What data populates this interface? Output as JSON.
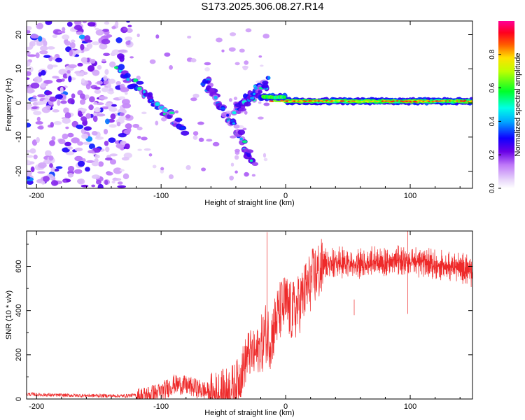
{
  "page": {
    "title": "S173.2025.306.08.27.R14"
  },
  "chart_data": [
    {
      "type": "heatmap",
      "title": "S173.2025.306.08.27.R14",
      "xlabel": "Height of straight line (km)",
      "ylabel": "Frequency (Hz)",
      "xlim": [
        -208,
        150
      ],
      "ylim": [
        -25,
        24
      ],
      "xticks": [
        -200,
        -100,
        0,
        100
      ],
      "xtick_labels": [
        "-200",
        "-100",
        "0",
        "100"
      ],
      "yticks": [
        -20,
        -10,
        0,
        10,
        20
      ],
      "ytick_labels": [
        "-20",
        "-10",
        "0",
        "10",
        "20"
      ],
      "colorbar": {
        "label": "Normalized spectral amplitude",
        "range": [
          0,
          1
        ],
        "ticks": [
          0.0,
          0.2,
          0.4,
          0.6,
          0.8
        ],
        "tick_labels": [
          "0.0",
          "0.2",
          "0.4",
          "0.6",
          "0.8"
        ]
      },
      "features": {
        "noise_region_x": [
          -208,
          -135
        ],
        "noise_amplitude": [
          0.05,
          0.35
        ],
        "tilted_lines": [
          {
            "x": [
              -135,
              -80
            ],
            "freq": [
              10,
              -8
            ]
          },
          {
            "x": [
              -65,
              -25
            ],
            "freq": [
              7,
              -17
            ]
          },
          {
            "x": [
              -40,
              -15
            ],
            "freq": [
              -2,
              6
            ]
          }
        ],
        "carrier_line": {
          "x": [
            -15,
            150
          ],
          "freq": 0.5,
          "amplitude": 0.9
        }
      }
    },
    {
      "type": "line",
      "xlabel": "Height of straight line (km)",
      "ylabel": "SNR (10 * v/v)",
      "xlim": [
        -208,
        150
      ],
      "ylim": [
        0,
        760
      ],
      "xticks": [
        -200,
        -100,
        0,
        100
      ],
      "xtick_labels": [
        "-200",
        "-100",
        "0",
        "100"
      ],
      "yticks": [
        0,
        200,
        400,
        600
      ],
      "ytick_labels": [
        "0",
        "200",
        "400",
        "600"
      ],
      "color": "#ee2a2a",
      "series": [
        {
          "name": "SNR",
          "x": [
            -208,
            -190,
            -170,
            -150,
            -130,
            -115,
            -100,
            -90,
            -80,
            -70,
            -60,
            -50,
            -40,
            -35,
            -30,
            -25,
            -20,
            -16,
            -12,
            -8,
            -4,
            0,
            4,
            8,
            12,
            16,
            20,
            25,
            30,
            40,
            50,
            60,
            70,
            80,
            90,
            100,
            110,
            120,
            130,
            140,
            150
          ],
          "y": [
            22,
            18,
            16,
            15,
            14,
            20,
            40,
            75,
            70,
            55,
            35,
            50,
            80,
            150,
            230,
            220,
            260,
            330,
            300,
            380,
            430,
            460,
            420,
            430,
            470,
            520,
            560,
            600,
            620,
            640,
            630,
            635,
            640,
            630,
            650,
            640,
            640,
            625,
            615,
            610,
            600
          ]
        }
      ],
      "spikes": [
        {
          "x": -15,
          "y": 755
        },
        {
          "x": 55,
          "y": 450
        },
        {
          "x": 98,
          "y": 760
        }
      ]
    }
  ]
}
